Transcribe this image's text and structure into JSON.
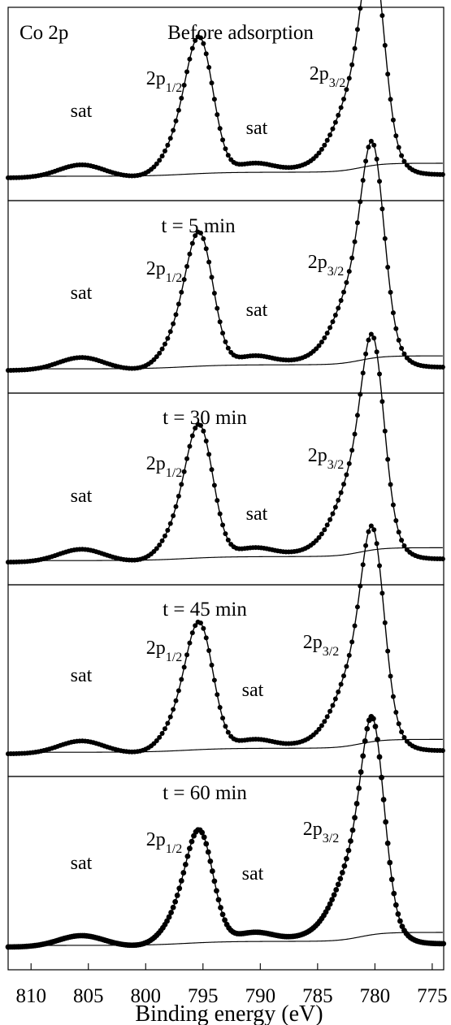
{
  "figure": {
    "element_label": "Co 2p",
    "xlabel": "Binding energy (eV)"
  },
  "chart_data": {
    "type": "line",
    "x": [
      810,
      805,
      800,
      795,
      790,
      785,
      780,
      775
    ],
    "xlim": [
      812,
      774
    ],
    "xticks": [
      810,
      805,
      800,
      795,
      790,
      785,
      780,
      775
    ],
    "xlabel": "Binding energy (eV)",
    "grid": false,
    "series": [
      {
        "name": "",
        "values": [
          0.14,
          0.19,
          0.11,
          0.72,
          0.16,
          0.08,
          1.0,
          0.03
        ],
        "peak_labels": {
          "sat_left": "sat",
          "two_p_half": "2p",
          "two_p_half_sub": "1/2",
          "sat_mid": "sat",
          "two_p_three_half": "2p",
          "two_p_three_half_sub": "3/2"
        },
        "panel_title": "Before adsorption"
      },
      {
        "name": "",
        "values": [
          0.14,
          0.19,
          0.11,
          0.71,
          0.16,
          0.08,
          1.0,
          0.03
        ],
        "peak_labels": {
          "sat_left": "sat",
          "two_p_half": "2p",
          "two_p_half_sub": "1/2",
          "sat_mid": "sat",
          "two_p_three_half": "2p",
          "two_p_three_half_sub": "3/2"
        },
        "panel_title": "t = 5 min"
      },
      {
        "name": "",
        "values": [
          0.14,
          0.19,
          0.11,
          0.71,
          0.16,
          0.08,
          1.0,
          0.03
        ],
        "peak_labels": {
          "sat_left": "sat",
          "two_p_half": "2p",
          "two_p_half_sub": "1/2",
          "sat_mid": "sat",
          "two_p_three_half": "2p",
          "two_p_three_half_sub": "3/2"
        },
        "panel_title": "t = 30 min"
      },
      {
        "name": "",
        "values": [
          0.14,
          0.19,
          0.11,
          0.68,
          0.16,
          0.08,
          1.0,
          0.03
        ],
        "peak_labels": {
          "sat_left": "sat",
          "two_p_half": "2p",
          "two_p_half_sub": "1/2",
          "sat_mid": "sat",
          "two_p_three_half": "2p",
          "two_p_three_half_sub": "3/2"
        },
        "panel_title": "t = 45 min"
      },
      {
        "name": "",
        "values": [
          0.14,
          0.18,
          0.11,
          0.6,
          0.16,
          0.08,
          1.0,
          0.03
        ],
        "peak_labels": {
          "sat_left": "sat",
          "two_p_half": "2p",
          "two_p_half_sub": "1/2",
          "sat_mid": "sat",
          "two_p_three_half": "2p",
          "two_p_three_half_sub": "3/2"
        },
        "panel_title": "t = 60 min"
      }
    ]
  }
}
